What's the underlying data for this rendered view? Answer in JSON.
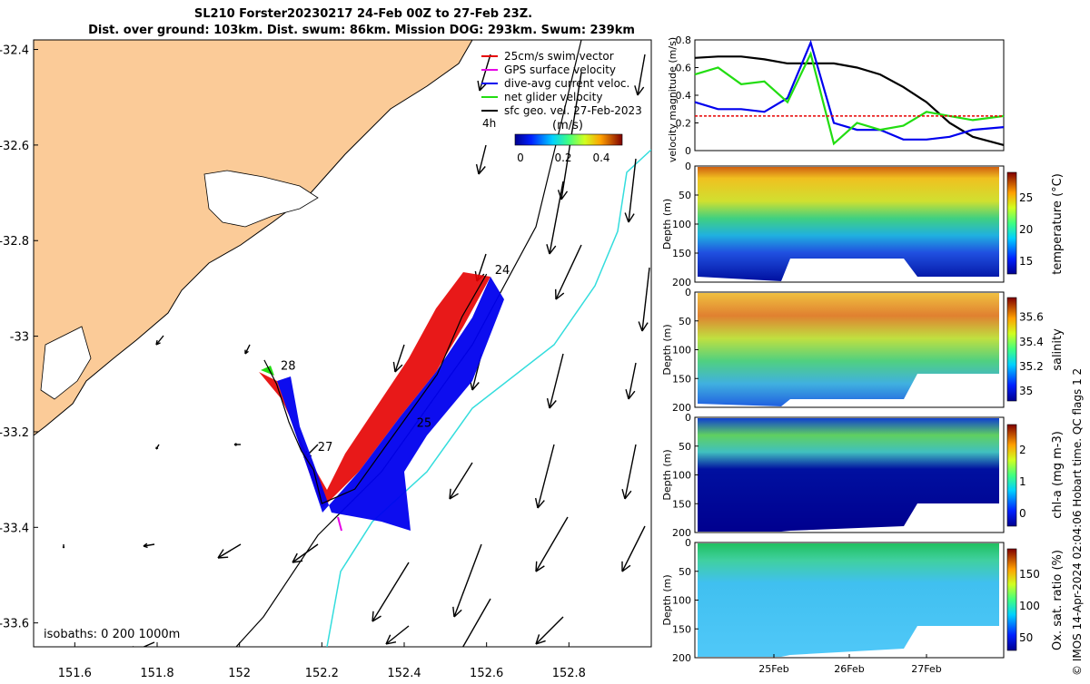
{
  "header": {
    "title_line1": "SL210 Forster20230217 24-Feb 00Z to 27-Feb 23Z.",
    "title_line2": "Dist. over ground: 103km. Dist. swum: 86km. Mission DOG: 293km. Swum: 239km"
  },
  "credit": "© IMOS 14-Apr-2024 02:04:06 Hobart time. QC flags 1  2",
  "colors": {
    "land": "#fbcb98",
    "swim": "#e60000",
    "gps": "#e600e6",
    "current": "#0000ee",
    "net": "#22dd11",
    "sfc": "#000000",
    "isobath_200": "#000000",
    "isobath_1000": "#33dddd"
  },
  "chart_data": [
    {
      "type": "map",
      "x_ticks": [
        "151.6",
        "151.8",
        "152",
        "152.2",
        "152.4",
        "152.6",
        "152.8"
      ],
      "y_ticks": [
        "-32.4",
        "-32.6",
        "-32.8",
        "-33",
        "-33.2",
        "-33.4",
        "-33.6"
      ],
      "xlim": [
        151.5,
        153.0
      ],
      "ylim": [
        -33.65,
        -32.38
      ],
      "legend": [
        {
          "label": "25cm/s swim vector",
          "color": "#e60000"
        },
        {
          "label": "GPS surface velocity",
          "color": "#e600e6"
        },
        {
          "label": "dive-avg current veloc.",
          "color": "#0000ee"
        },
        {
          "label": "net glider velocity",
          "color": "#22dd11"
        },
        {
          "label": "sfc geo. vel. 27-Feb-2023",
          "color": "#000000"
        }
      ],
      "legend_placement": "top-right",
      "colorbar": {
        "label": "(m/s)",
        "ticks": [
          "0",
          "0.2",
          "0.4"
        ],
        "vmin": 0,
        "vmax": 0.5,
        "note": "4h"
      },
      "isobaths_label": "isobaths: 0   200  1000m",
      "day_labels": [
        {
          "text": "24",
          "lon": 152.62,
          "lat": -32.87
        },
        {
          "text": "28",
          "lon": 152.1,
          "lat": -33.07
        },
        {
          "text": "27",
          "lon": 152.19,
          "lat": -33.24
        },
        {
          "text": "25",
          "lon": 152.43,
          "lat": -33.19
        }
      ],
      "track": [
        {
          "lon": 152.06,
          "lat": -33.05
        },
        {
          "lon": 152.09,
          "lat": -33.1
        },
        {
          "lon": 152.12,
          "lat": -33.18
        },
        {
          "lon": 152.15,
          "lat": -33.24
        },
        {
          "lon": 152.18,
          "lat": -33.28
        },
        {
          "lon": 152.2,
          "lat": -33.35
        },
        {
          "lon": 152.28,
          "lat": -33.32
        },
        {
          "lon": 152.38,
          "lat": -33.2
        },
        {
          "lon": 152.48,
          "lat": -33.08
        },
        {
          "lon": 152.54,
          "lat": -32.96
        },
        {
          "lon": 152.6,
          "lat": -32.87
        }
      ]
    },
    {
      "type": "line",
      "ylabel": "velocity magnitude (m/s)",
      "ylim": [
        0,
        0.8
      ],
      "y_ticks": [
        "0",
        "0.2",
        "0.4",
        "0.6",
        "0.8"
      ],
      "x": [
        0,
        0.3,
        0.6,
        0.9,
        1.2,
        1.5,
        1.8,
        2.1,
        2.4,
        2.7,
        3.0,
        3.3,
        3.6,
        4.0
      ],
      "series": [
        {
          "color": "#000000",
          "values": [
            0.67,
            0.68,
            0.68,
            0.66,
            0.63,
            0.63,
            0.63,
            0.6,
            0.55,
            0.46,
            0.35,
            0.2,
            0.1,
            0.04
          ]
        },
        {
          "color": "#0000ee",
          "values": [
            0.35,
            0.3,
            0.3,
            0.28,
            0.38,
            0.78,
            0.2,
            0.15,
            0.15,
            0.08,
            0.08,
            0.1,
            0.15,
            0.17
          ]
        },
        {
          "color": "#22dd11",
          "values": [
            0.55,
            0.6,
            0.48,
            0.5,
            0.35,
            0.7,
            0.05,
            0.2,
            0.15,
            0.18,
            0.28,
            0.25,
            0.22,
            0.25
          ]
        },
        {
          "color": "#e60000",
          "values": [
            0.25,
            0.25,
            0.25,
            0.25,
            0.25,
            0.25,
            0.25,
            0.25,
            0.25,
            0.25,
            0.25,
            0.25,
            0.25,
            0.25
          ]
        }
      ]
    },
    {
      "type": "heatmap",
      "ylabel": "Depth (m)",
      "colorbar_label": "temperature (°C)",
      "y_ticks": [
        "0",
        "50",
        "100",
        "150",
        "200"
      ],
      "cbar_ticks": [
        "15",
        "20",
        "25"
      ],
      "x_ticks": [
        "25Feb",
        "26Feb",
        "27Feb"
      ]
    },
    {
      "type": "heatmap",
      "ylabel": "Depth (m)",
      "colorbar_label": "salinity",
      "y_ticks": [
        "0",
        "50",
        "100",
        "150",
        "200"
      ],
      "cbar_ticks": [
        "35",
        "35.2",
        "35.4",
        "35.6"
      ],
      "x_ticks": [
        "25Feb",
        "26Feb",
        "27Feb"
      ]
    },
    {
      "type": "heatmap",
      "ylabel": "Depth (m)",
      "colorbar_label": "chl-a (mg m-3)",
      "y_ticks": [
        "0",
        "50",
        "100",
        "150",
        "200"
      ],
      "cbar_ticks": [
        "0",
        "1",
        "2"
      ],
      "x_ticks": [
        "25Feb",
        "26Feb",
        "27Feb"
      ]
    },
    {
      "type": "heatmap",
      "ylabel": "Depth (m)",
      "colorbar_label": "Ox. sat. ratio (%)",
      "y_ticks": [
        "0",
        "50",
        "100",
        "150",
        "200"
      ],
      "cbar_ticks": [
        "50",
        "100",
        "150"
      ],
      "x_ticks": [
        "25Feb",
        "26Feb",
        "27Feb"
      ]
    }
  ]
}
